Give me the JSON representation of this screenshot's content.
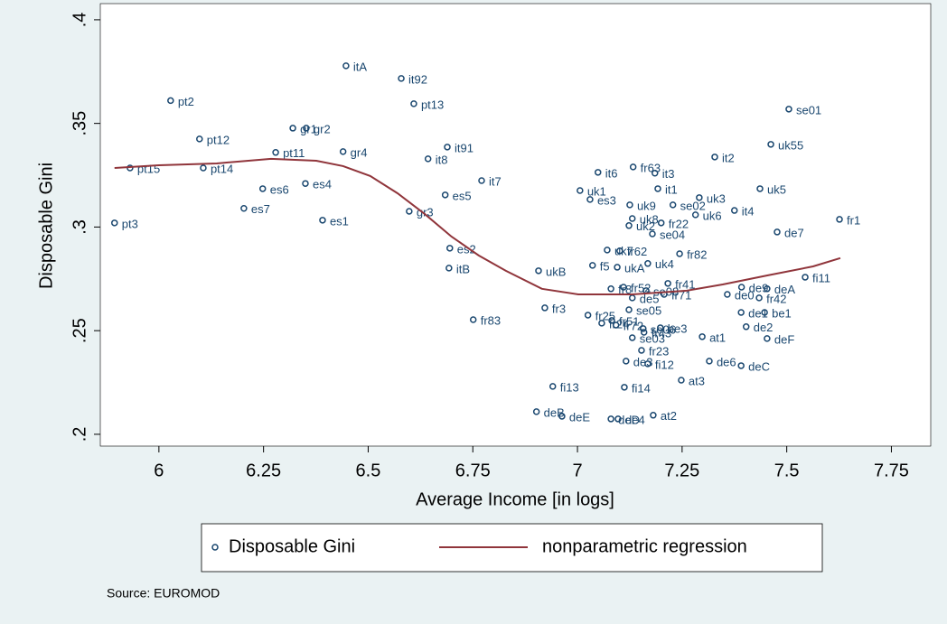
{
  "chart_data": {
    "type": "scatter",
    "x_label": "Average Income [in logs]",
    "y_label": "Disposable Gini",
    "note": "Source: EUROMOD",
    "xlim": [
      5.86,
      7.844
    ],
    "ylim": [
      0.1943,
      0.4078
    ],
    "xticks": [
      6,
      6.25,
      6.5,
      6.75,
      7,
      7.25,
      7.5,
      7.75
    ],
    "yticks": [
      {
        "value": 0.2,
        "label": ".2"
      },
      {
        "value": 0.25,
        "label": ".25"
      },
      {
        "value": 0.3,
        "label": ".3"
      },
      {
        "value": 0.35,
        "label": ".35"
      },
      {
        "value": 0.4,
        "label": ".4"
      }
    ],
    "series": [
      {
        "name": "Disposable Gini",
        "type": "scatter",
        "color": "#1a476f",
        "labels": [
          "pt2",
          "pt12",
          "pt11",
          "pt15",
          "pt14",
          "pt3",
          "es6",
          "es4",
          "es7",
          "es1",
          "gr1",
          "gr2",
          "gr4",
          "gr3",
          "itA",
          "it92",
          "pt13",
          "it91",
          "it8",
          "it7",
          "es5",
          "es2",
          "itB",
          "fr83",
          "ukB",
          "fr3",
          "fr25",
          "es3",
          "uk1",
          "it6",
          "fr63",
          "it3",
          "it1",
          "uk9",
          "se02",
          "uk3",
          "uk6",
          "it4",
          "uk8",
          "uk2",
          "fr22",
          "se04",
          "uk7",
          "fr62",
          "fr82",
          "uk4",
          "uk5",
          "it2",
          "uk55",
          "se01",
          "fr1",
          "de7",
          "fi11",
          "ukA",
          "f5",
          "deA",
          "de9",
          "de0",
          "fr42",
          "fr41",
          "fr71",
          "de1",
          "be1",
          "de2",
          "deF",
          "at1",
          "be3",
          "se05",
          "fr51",
          "fr43",
          "se03",
          "fr23",
          "de3",
          "fi12",
          "de6",
          "deC",
          "at3",
          "fi13",
          "fi14",
          "deE",
          "deB",
          "deD",
          "de4",
          "at2",
          "fr8",
          "fr52",
          "fr24",
          "fr72",
          "se06",
          "de5",
          "se08"
        ],
        "x": [
          6.028,
          6.097,
          6.279,
          5.931,
          6.106,
          5.894,
          6.248,
          6.35,
          6.203,
          6.391,
          6.32,
          6.352,
          6.44,
          6.598,
          6.447,
          6.579,
          6.609,
          6.689,
          6.643,
          6.771,
          6.684,
          6.695,
          6.693,
          6.751,
          6.907,
          6.922,
          7.025,
          7.03,
          7.006,
          7.049,
          7.133,
          7.185,
          7.192,
          7.125,
          7.228,
          7.291,
          7.282,
          7.375,
          7.131,
          7.123,
          7.2,
          7.179,
          7.071,
          7.101,
          7.244,
          7.168,
          7.436,
          7.328,
          7.462,
          7.505,
          7.626,
          7.477,
          7.544,
          7.095,
          7.036,
          7.453,
          7.392,
          7.358,
          7.434,
          7.216,
          7.207,
          7.391,
          7.447,
          7.403,
          7.453,
          7.298,
          7.198,
          7.123,
          7.082,
          7.159,
          7.131,
          7.153,
          7.116,
          7.168,
          7.315,
          7.391,
          7.248,
          6.941,
          7.112,
          6.963,
          6.902,
          7.08,
          7.097,
          7.181,
          7.08,
          7.11,
          7.058,
          7.092,
          7.157,
          7.131,
          7.164
        ],
        "values": [
          0.361,
          0.3425,
          0.336,
          0.3285,
          0.3285,
          0.302,
          0.3185,
          0.321,
          0.309,
          0.3033,
          0.3477,
          0.3477,
          0.3364,
          0.3076,
          0.3778,
          0.3717,
          0.3595,
          0.3386,
          0.3329,
          0.3224,
          0.3155,
          0.2898,
          0.2802,
          0.2553,
          0.2789,
          0.261,
          0.2575,
          0.3133,
          0.3176,
          0.3264,
          0.329,
          0.326,
          0.3185,
          0.3107,
          0.3107,
          0.3142,
          0.3059,
          0.308,
          0.3041,
          0.3007,
          0.302,
          0.2967,
          0.2889,
          0.2885,
          0.2871,
          0.2824,
          0.3185,
          0.3338,
          0.3399,
          0.3569,
          0.3037,
          0.2976,
          0.2758,
          0.2806,
          0.2815,
          0.2702,
          0.271,
          0.2675,
          0.2658,
          0.2728,
          0.2675,
          0.2588,
          0.2588,
          0.2519,
          0.2462,
          0.2471,
          0.2514,
          0.2601,
          0.2549,
          0.2492,
          0.2466,
          0.2405,
          0.2353,
          0.234,
          0.2353,
          0.2331,
          0.2261,
          0.2231,
          0.2227,
          0.2087,
          0.2109,
          0.2074,
          0.2074,
          0.2092,
          0.2702,
          0.271,
          0.2536,
          0.2527,
          0.251,
          0.2658,
          0.2693
        ]
      },
      {
        "name": "nonparametric regression",
        "type": "line",
        "color": "#90353b",
        "x": [
          5.894,
          6,
          6.138,
          6.268,
          6.376,
          6.44,
          6.505,
          6.57,
          6.635,
          6.699,
          6.764,
          6.829,
          6.915,
          7.002,
          7.131,
          7.261,
          7.347,
          7.455,
          7.563,
          7.628
        ],
        "values": [
          0.3285,
          0.3298,
          0.3307,
          0.3329,
          0.332,
          0.3294,
          0.3246,
          0.3163,
          0.3063,
          0.2954,
          0.2863,
          0.2789,
          0.2702,
          0.2675,
          0.2675,
          0.2693,
          0.2723,
          0.2767,
          0.281,
          0.285
        ]
      }
    ]
  }
}
